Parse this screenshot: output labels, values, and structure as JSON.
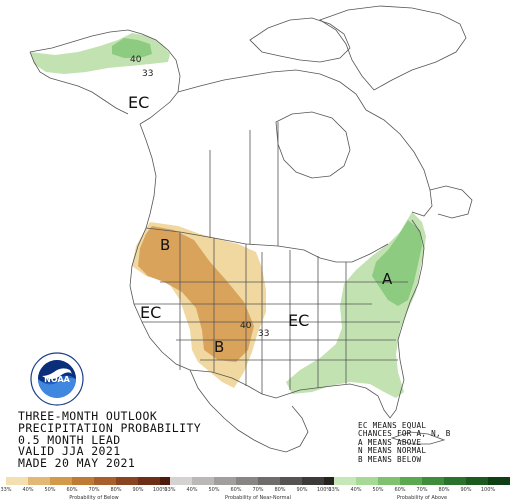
{
  "map": {
    "regions": [
      {
        "id": "ec-alaska",
        "text": "EC"
      },
      {
        "id": "ec-west",
        "text": "EC"
      },
      {
        "id": "ec-central",
        "text": "EC"
      },
      {
        "id": "b-northwest",
        "text": "B"
      },
      {
        "id": "b-southwest",
        "text": "B"
      },
      {
        "id": "a-east",
        "text": "A"
      }
    ],
    "contours": [
      {
        "id": "c-ak-40",
        "text": "40"
      },
      {
        "id": "c-ak-33",
        "text": "33"
      },
      {
        "id": "c-sw-40",
        "text": "40"
      },
      {
        "id": "c-sw-33",
        "text": "33"
      }
    ],
    "colors": {
      "below_33": "#f0d8a0",
      "below_40": "#d9a35c",
      "above_33": "#c2e2b2",
      "above_40": "#8ccb80",
      "land_border": "#555555",
      "water": "#ffffff"
    }
  },
  "title": {
    "line1": "THREE-MONTH OUTLOOK",
    "line2": "PRECIPITATION PROBABILITY",
    "line3": "0.5 MONTH LEAD",
    "line4": "VALID JJA 2021",
    "line5": "MADE 20 MAY 2021"
  },
  "note": {
    "line1": "EC MEANS EQUAL",
    "line2": "CHANCES FOR A, N, B",
    "line3": "A MEANS ABOVE",
    "line4": "N MEANS NORMAL",
    "line5": "B MEANS BELOW"
  },
  "legend": {
    "below": {
      "caption": "Probability of Below",
      "colors": [
        "#f3dfb0",
        "#e3b874",
        "#d39a4c",
        "#bf7a36",
        "#a85f2c",
        "#8a4422",
        "#6e2e18",
        "#4e1a0c"
      ],
      "ticks": [
        "33%",
        "40%",
        "50%",
        "60%",
        "70%",
        "80%",
        "90%",
        "100%"
      ]
    },
    "normal": {
      "caption": "Probability of Near-Normal",
      "colors": [
        "#d6d2d2",
        "#bdb8b8",
        "#a39e9e",
        "#8a8585",
        "#716c6c",
        "#585353",
        "#3f3a3a",
        "#262222"
      ],
      "ticks": [
        "33%",
        "40%",
        "50%",
        "60%",
        "70%",
        "80%",
        "90%",
        "100%"
      ]
    },
    "above": {
      "caption": "Probability of Above",
      "colors": [
        "#c6e8b8",
        "#a6d896",
        "#7fc16e",
        "#5aa84f",
        "#3f8d3b",
        "#2b732c",
        "#1c5a20",
        "#0f4014"
      ],
      "ticks": [
        "33%",
        "40%",
        "50%",
        "60%",
        "70%",
        "80%",
        "90%",
        "100%"
      ]
    }
  },
  "logo": {
    "text": "NOAA",
    "ring_text": "NATIONAL OCEANIC AND ATMOSPHERIC ADMINISTRATION"
  }
}
